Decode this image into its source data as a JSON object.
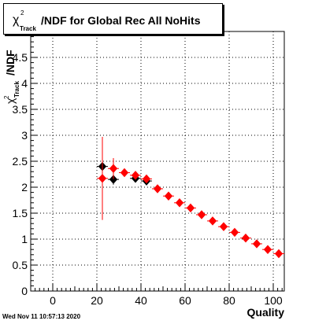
{
  "title": {
    "chi_symbol": "χ",
    "chi_sup": "2",
    "chi_sub": "Track",
    "text": "/NDF for Global Rec All NoHits"
  },
  "datestamp": "Wed Nov 11 10:57:13 2020",
  "chart_data": {
    "type": "scatter",
    "xlabel": "Quality",
    "ylabel": "/NDF",
    "ylabel_chi": "χ",
    "ylabel_sup": "2",
    "ylabel_sub": "Track",
    "xlim": [
      -10,
      105
    ],
    "ylim": [
      0,
      5
    ],
    "xticks": [
      0,
      20,
      40,
      60,
      80,
      100
    ],
    "yticks": [
      0,
      0.5,
      1,
      1.5,
      2,
      2.5,
      3,
      3.5,
      4,
      4.5
    ],
    "grid": true,
    "colors": {
      "black": "#000000",
      "red": "#ff0000"
    },
    "series": [
      {
        "color": "black",
        "points": [
          {
            "x": 22.5,
            "y": 2.4,
            "err": 0.1
          },
          {
            "x": 27.5,
            "y": 2.15,
            "err": 0.1
          },
          {
            "x": 37.5,
            "y": 2.17,
            "err": 0.04
          },
          {
            "x": 42.5,
            "y": 2.12,
            "err": 0.04
          }
        ]
      },
      {
        "color": "red",
        "points": [
          {
            "x": 22.5,
            "y": 2.17,
            "err": 0.8
          },
          {
            "x": 27.5,
            "y": 2.36,
            "err": 0.2
          },
          {
            "x": 32.5,
            "y": 2.28,
            "err": 0.05
          },
          {
            "x": 37.5,
            "y": 2.23,
            "err": 0.04
          },
          {
            "x": 42.5,
            "y": 2.16,
            "err": 0.04
          },
          {
            "x": 47.5,
            "y": 1.97,
            "err": 0.02
          },
          {
            "x": 52.5,
            "y": 1.83,
            "err": 0.02
          },
          {
            "x": 57.5,
            "y": 1.7,
            "err": 0.02
          },
          {
            "x": 62.5,
            "y": 1.6,
            "err": 0.02
          },
          {
            "x": 67.5,
            "y": 1.47,
            "err": 0.02
          },
          {
            "x": 72.5,
            "y": 1.35,
            "err": 0.02
          },
          {
            "x": 77.5,
            "y": 1.24,
            "err": 0.02
          },
          {
            "x": 82.5,
            "y": 1.13,
            "err": 0.02
          },
          {
            "x": 87.5,
            "y": 1.02,
            "err": 0.02
          },
          {
            "x": 92.5,
            "y": 0.91,
            "err": 0.02
          },
          {
            "x": 97.5,
            "y": 0.8,
            "err": 0.02
          },
          {
            "x": 102.5,
            "y": 0.72,
            "err": 0.02
          }
        ]
      }
    ]
  }
}
